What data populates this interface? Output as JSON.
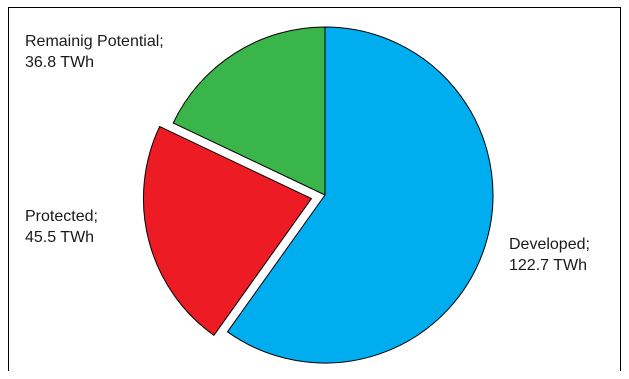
{
  "chart_data": {
    "type": "pie",
    "slices": [
      {
        "name": "Developed",
        "value": 122.7,
        "unit": "TWh",
        "label_line1": "Developed;",
        "label_line2": "122.7 TWh",
        "color": "#00aeef",
        "exploded": false
      },
      {
        "name": "Protected",
        "value": 45.5,
        "unit": "TWh",
        "label_line1": "Protected;",
        "label_line2": "45.5 TWh",
        "color": "#ed1c24",
        "exploded": true
      },
      {
        "name": "Remaining Potential",
        "value": 36.8,
        "unit": "TWh",
        "label_line1": "Remainig Potential;",
        "label_line2": "36.8 TWh",
        "color": "#39b54a",
        "exploded": false
      }
    ],
    "start": "12 o'clock",
    "direction": "clockwise",
    "slice_outline_color": "#000000",
    "legend": "none"
  }
}
